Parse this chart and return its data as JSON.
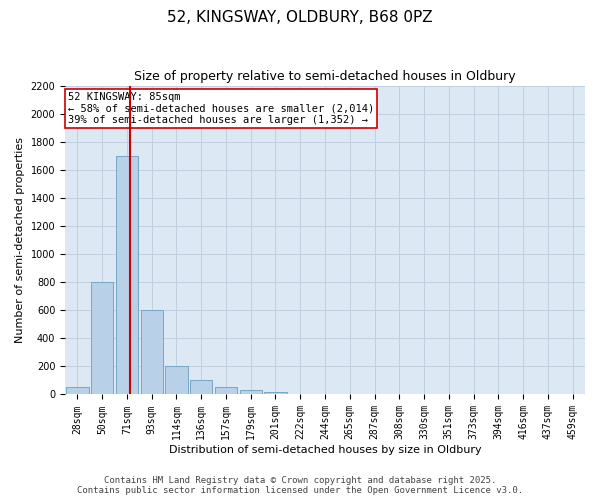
{
  "title1": "52, KINGSWAY, OLDBURY, B68 0PZ",
  "title2": "Size of property relative to semi-detached houses in Oldbury",
  "xlabel": "Distribution of semi-detached houses by size in Oldbury",
  "ylabel": "Number of semi-detached properties",
  "categories": [
    "28sqm",
    "50sqm",
    "71sqm",
    "93sqm",
    "114sqm",
    "136sqm",
    "157sqm",
    "179sqm",
    "201sqm",
    "222sqm",
    "244sqm",
    "265sqm",
    "287sqm",
    "308sqm",
    "330sqm",
    "351sqm",
    "373sqm",
    "394sqm",
    "416sqm",
    "437sqm",
    "459sqm"
  ],
  "values": [
    50,
    800,
    1700,
    600,
    200,
    100,
    55,
    35,
    20,
    5,
    3,
    2,
    1,
    0,
    0,
    0,
    0,
    0,
    0,
    0,
    0
  ],
  "bar_color": "#b8d0e8",
  "bar_edge_color": "#6a9fc0",
  "grid_color": "#c0d0e0",
  "background_color": "#dce8f4",
  "annotation_box_color": "#ffffff",
  "annotation_box_edge": "#cc0000",
  "vline_color": "#cc0000",
  "vline_x": 2.12,
  "annotation_title": "52 KINGSWAY: 85sqm",
  "annotation_line1": "← 58% of semi-detached houses are smaller (2,014)",
  "annotation_line2": "39% of semi-detached houses are larger (1,352) →",
  "ylim": [
    0,
    2200
  ],
  "yticks": [
    0,
    200,
    400,
    600,
    800,
    1000,
    1200,
    1400,
    1600,
    1800,
    2000,
    2200
  ],
  "title_fontsize": 11,
  "subtitle_fontsize": 9,
  "axis_label_fontsize": 8,
  "tick_fontsize": 7,
  "annotation_fontsize": 7.5,
  "footer_fontsize": 6.5,
  "footer1": "Contains HM Land Registry data © Crown copyright and database right 2025.",
  "footer2": "Contains public sector information licensed under the Open Government Licence v3.0."
}
